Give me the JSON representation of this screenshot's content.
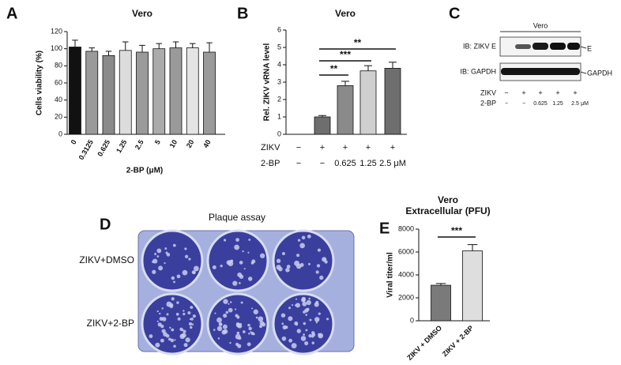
{
  "chart_data": [
    {
      "type": "bar",
      "panel": "A",
      "title": "Vero",
      "categories": [
        "0",
        "0.3125",
        "0.625",
        "1.25",
        "2.5",
        "5",
        "10",
        "20",
        "40"
      ],
      "values": [
        102,
        97,
        92,
        98,
        96,
        100,
        101,
        101,
        96
      ],
      "errors": [
        8,
        4,
        5,
        10,
        8,
        6,
        7,
        5,
        11
      ],
      "colors": [
        "#111111",
        "#9a9a9a",
        "#8a8a8a",
        "#dcdcdc",
        "#9a9a9a",
        "#ababab",
        "#9a9a9a",
        "#e4e4e4",
        "#9a9a9a"
      ],
      "xlabel": "2-BP (μM)",
      "ylabel": "Cells viability (%)",
      "ylim": [
        0,
        120
      ],
      "yticks": [
        0,
        20,
        40,
        60,
        80,
        100,
        120
      ]
    },
    {
      "type": "bar",
      "panel": "B",
      "title": "Vero",
      "categories": [
        "−",
        "−",
        "0.625",
        "1.25",
        "2.5 μM"
      ],
      "xlabel": "2-BP",
      "category_rows": [
        {
          "name": "ZIKV",
          "labels": [
            "−",
            "+",
            "+",
            "+",
            "+"
          ]
        }
      ],
      "values": [
        null,
        1.0,
        2.8,
        3.65,
        3.8
      ],
      "errors": [
        null,
        0.08,
        0.25,
        0.3,
        0.35
      ],
      "colors": [
        null,
        "#6e6e6e",
        "#8a8a8a",
        "#cfcfcf",
        "#6e6e6e"
      ],
      "ylabel": "Rel. ZIKV vRNA level",
      "ylim": [
        0,
        6
      ],
      "yticks": [
        0,
        1,
        2,
        3,
        4,
        5,
        6
      ],
      "annotations": [
        "**",
        "***",
        "**"
      ]
    },
    {
      "type": "bar",
      "panel": "E",
      "title": "Vero",
      "subtitle": "Extracellular (PFU)",
      "categories": [
        "ZIKV + DMSO",
        "ZIKV + 2-BP"
      ],
      "values": [
        3100,
        6100
      ],
      "errors": [
        150,
        550
      ],
      "colors": [
        "#7a7a7a",
        "#dedede"
      ],
      "ylabel": "Viral titer/ml",
      "ylim": [
        0,
        8000
      ],
      "yticks": [
        0,
        2000,
        4000,
        6000,
        8000
      ],
      "annotations": [
        "***"
      ]
    }
  ],
  "blot": {
    "panel": "C",
    "title": "Vero",
    "rows": [
      {
        "label": "IB: ZIKV E",
        "band": "E"
      },
      {
        "label": "IB: GAPDH",
        "band": "GAPDH"
      }
    ],
    "conditions": [
      {
        "name": "ZIKV",
        "labels": [
          "−",
          "+",
          "+",
          "+",
          "+"
        ]
      },
      {
        "name": "2-BP",
        "labels": [
          "−",
          "−",
          "0.625",
          "1.25",
          "2.5",
          "μM"
        ]
      }
    ]
  },
  "plaque": {
    "panel": "D",
    "title": "Plaque assay",
    "rows": [
      "ZIKV+DMSO",
      "ZIKV+2-BP"
    ]
  }
}
